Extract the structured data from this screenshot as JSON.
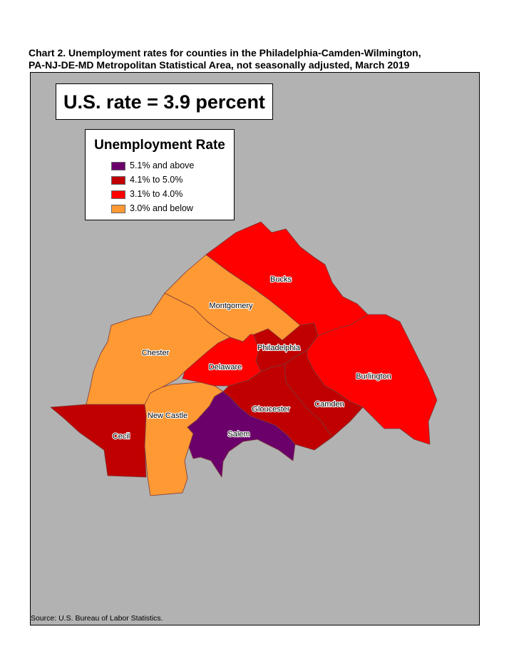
{
  "title_line1": "Chart 2. Unemployment rates for counties in the Philadelphia-Camden-Wilmington,",
  "title_line2": "PA-NJ-DE-MD Metropolitan Statistical Area, not seasonally adjusted, March 2019",
  "us_rate": "U.S. rate = 3.9 percent",
  "legend": {
    "title": "Unemployment Rate",
    "items": [
      {
        "label": "5.1% and above",
        "color": "#6b006b"
      },
      {
        "label": "4.1% to 5.0%",
        "color": "#c00000"
      },
      {
        "label": "3.1% to 4.0%",
        "color": "#ff0000"
      },
      {
        "label": "3.0% and below",
        "color": "#ff9933"
      }
    ]
  },
  "counties": [
    {
      "name": "Bucks",
      "category": "3.1% to 4.0%",
      "color": "#ff0000"
    },
    {
      "name": "Montgomery",
      "category": "3.0% and below",
      "color": "#ff9933"
    },
    {
      "name": "Chester",
      "category": "3.0% and below",
      "color": "#ff9933"
    },
    {
      "name": "Philadelphia",
      "category": "4.1% to 5.0%",
      "color": "#c00000"
    },
    {
      "name": "Delaware",
      "category": "3.1% to 4.0%",
      "color": "#ff0000"
    },
    {
      "name": "Burlington",
      "category": "3.1% to 4.0%",
      "color": "#ff0000"
    },
    {
      "name": "Camden",
      "category": "4.1% to 5.0%",
      "color": "#c00000"
    },
    {
      "name": "Gloucester",
      "category": "4.1% to 5.0%",
      "color": "#c00000"
    },
    {
      "name": "New Castle",
      "category": "3.0% and below",
      "color": "#ff9933"
    },
    {
      "name": "Salem",
      "category": "5.1% and above",
      "color": "#6b006b"
    },
    {
      "name": "Cecil",
      "category": "4.1% to 5.0%",
      "color": "#c00000"
    }
  ],
  "background_color": "#b2b2b2",
  "source": "Source: U.S. Bureau of Labor Statistics."
}
